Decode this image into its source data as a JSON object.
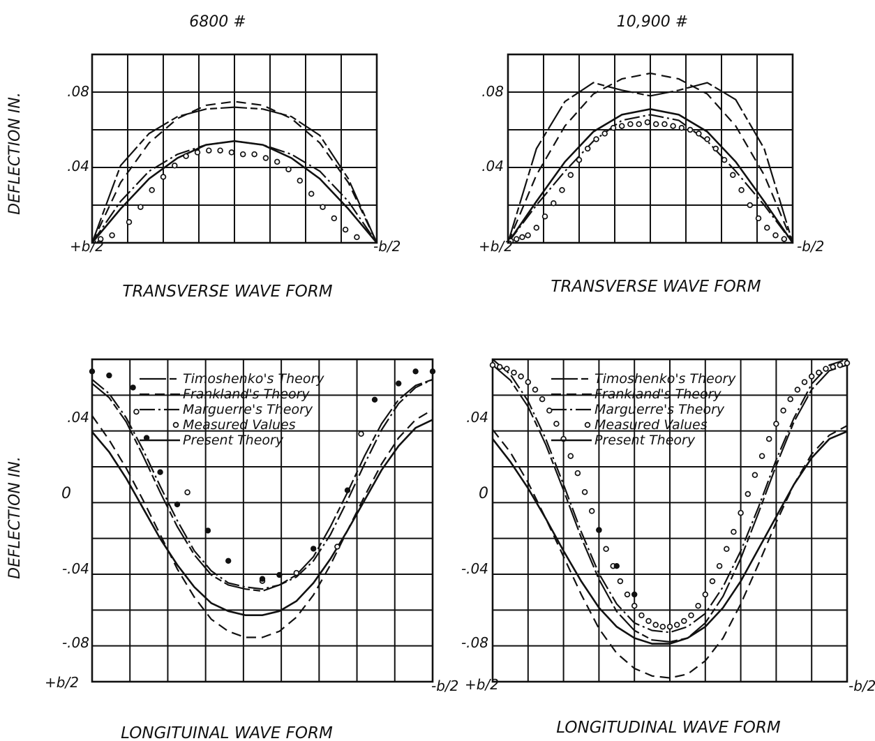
{
  "figure": {
    "ylabel": "DEFLECTION IN.",
    "legend_entries": [
      {
        "label": "Timoshenko's Theory",
        "series": "timoshenko"
      },
      {
        "label": "Frankland's Theory",
        "series": "frankland"
      },
      {
        "label": "Marguerre's Theory",
        "series": "marguerre"
      },
      {
        "label": "Measured Values",
        "series": "measured"
      },
      {
        "label": "Present Theory",
        "series": "present"
      }
    ]
  },
  "chart_data": [
    {
      "type": "line",
      "title": "6800 #",
      "xlabel": "TRANSVERSE WAVE FORM",
      "ylabel": "DEFLECTION IN.",
      "x_tick_labels": [
        "+b/2",
        "-b/2"
      ],
      "y_tick_labels": [
        ".04",
        ".08"
      ],
      "xlim": [
        0,
        1
      ],
      "ylim": [
        0,
        0.1
      ],
      "x": [
        0,
        0.1,
        0.2,
        0.3,
        0.4,
        0.5,
        0.6,
        0.7,
        0.8,
        0.9,
        1.0
      ],
      "series": [
        {
          "key": "timoshenko",
          "values": [
            0,
            0.041,
            0.058,
            0.067,
            0.071,
            0.072,
            0.071,
            0.067,
            0.057,
            0.034,
            0
          ]
        },
        {
          "key": "frankland",
          "values": [
            0,
            0.032,
            0.053,
            0.066,
            0.073,
            0.075,
            0.073,
            0.066,
            0.053,
            0.032,
            0
          ]
        },
        {
          "key": "marguerre",
          "values": [
            0,
            0.022,
            0.038,
            0.047,
            0.052,
            0.054,
            0.052,
            0.047,
            0.038,
            0.022,
            0
          ]
        },
        {
          "key": "present",
          "values": [
            0,
            0.018,
            0.034,
            0.045,
            0.052,
            0.054,
            0.052,
            0.045,
            0.034,
            0.018,
            0
          ]
        },
        {
          "key": "measured",
          "marker": "hollow",
          "x": [
            0.03,
            0.07,
            0.13,
            0.17,
            0.21,
            0.25,
            0.29,
            0.33,
            0.37,
            0.41,
            0.45,
            0.49,
            0.53,
            0.57,
            0.61,
            0.65,
            0.69,
            0.73,
            0.77,
            0.81,
            0.85,
            0.89,
            0.93
          ],
          "values": [
            0.002,
            0.004,
            0.011,
            0.019,
            0.028,
            0.035,
            0.041,
            0.046,
            0.048,
            0.049,
            0.049,
            0.048,
            0.047,
            0.047,
            0.045,
            0.043,
            0.039,
            0.033,
            0.026,
            0.019,
            0.013,
            0.007,
            0.003
          ]
        }
      ]
    },
    {
      "type": "line",
      "title": "10,900 #",
      "xlabel": "TRANSVERSE WAVE FORM",
      "ylabel": "DEFLECTION IN.",
      "x_tick_labels": [
        "+b/2",
        "-b/2"
      ],
      "y_tick_labels": [
        ".04",
        ".08"
      ],
      "xlim": [
        0,
        1
      ],
      "ylim": [
        0,
        0.1
      ],
      "x": [
        0,
        0.1,
        0.2,
        0.3,
        0.4,
        0.5,
        0.6,
        0.7,
        0.8,
        0.9,
        1.0
      ],
      "series": [
        {
          "key": "timoshenko",
          "values": [
            0,
            0.05,
            0.075,
            0.085,
            0.081,
            0.078,
            0.081,
            0.085,
            0.076,
            0.05,
            0
          ]
        },
        {
          "key": "frankland",
          "values": [
            0,
            0.036,
            0.062,
            0.079,
            0.087,
            0.09,
            0.087,
            0.079,
            0.062,
            0.036,
            0
          ]
        },
        {
          "key": "marguerre",
          "values": [
            0,
            0.02,
            0.038,
            0.054,
            0.065,
            0.068,
            0.065,
            0.054,
            0.038,
            0.02,
            0
          ]
        },
        {
          "key": "present",
          "values": [
            0,
            0.022,
            0.043,
            0.059,
            0.068,
            0.071,
            0.068,
            0.059,
            0.043,
            0.022,
            0
          ]
        },
        {
          "key": "measured",
          "marker": "hollow",
          "x": [
            0.01,
            0.03,
            0.05,
            0.07,
            0.1,
            0.13,
            0.16,
            0.19,
            0.22,
            0.25,
            0.28,
            0.31,
            0.34,
            0.37,
            0.4,
            0.43,
            0.46,
            0.49,
            0.52,
            0.55,
            0.58,
            0.61,
            0.64,
            0.67,
            0.7,
            0.73,
            0.76,
            0.79,
            0.82,
            0.85,
            0.88,
            0.91,
            0.94,
            0.97
          ],
          "values": [
            0.001,
            0.002,
            0.003,
            0.004,
            0.008,
            0.014,
            0.021,
            0.028,
            0.036,
            0.044,
            0.05,
            0.055,
            0.058,
            0.061,
            0.062,
            0.063,
            0.063,
            0.064,
            0.063,
            0.063,
            0.062,
            0.061,
            0.06,
            0.058,
            0.055,
            0.05,
            0.044,
            0.036,
            0.028,
            0.02,
            0.013,
            0.008,
            0.004,
            0.002
          ]
        }
      ]
    },
    {
      "type": "line",
      "title": "",
      "xlabel": "LONGITUINAL WAVE FORM",
      "ylabel": "DEFLECTION IN.",
      "x_tick_labels": [
        "+b/2",
        "-b/2"
      ],
      "y_tick_labels": [
        ".04",
        "0",
        "-.04",
        "-.08"
      ],
      "xlim": [
        0,
        1
      ],
      "ylim": [
        -0.1,
        0.06
      ],
      "x": [
        0,
        0.05,
        0.1,
        0.15,
        0.2,
        0.25,
        0.3,
        0.35,
        0.4,
        0.45,
        0.5,
        0.55,
        0.6,
        0.65,
        0.7,
        0.75,
        0.8,
        0.85,
        0.9,
        0.95,
        1.0
      ],
      "series": [
        {
          "key": "timoshenko",
          "values": [
            0.048,
            0.041,
            0.029,
            0.012,
            -0.006,
            -0.023,
            -0.037,
            -0.047,
            -0.052,
            -0.054,
            -0.055,
            -0.052,
            -0.047,
            -0.038,
            -0.023,
            -0.006,
            0.012,
            0.028,
            0.04,
            0.047,
            0.05
          ]
        },
        {
          "key": "frankland",
          "values": [
            0.032,
            0.02,
            0.006,
            -0.01,
            -0.027,
            -0.044,
            -0.058,
            -0.069,
            -0.075,
            -0.078,
            -0.078,
            -0.075,
            -0.068,
            -0.057,
            -0.042,
            -0.025,
            -0.008,
            0.008,
            0.021,
            0.03,
            0.035
          ]
        },
        {
          "key": "marguerre",
          "values": [
            0.05,
            0.043,
            0.031,
            0.015,
            -0.003,
            -0.02,
            -0.035,
            -0.045,
            -0.051,
            -0.053,
            -0.054,
            -0.052,
            -0.048,
            -0.04,
            -0.027,
            -0.01,
            0.008,
            0.025,
            0.038,
            0.046,
            0.05
          ]
        },
        {
          "key": "present",
          "values": [
            0.024,
            0.014,
            0.001,
            -0.014,
            -0.029,
            -0.042,
            -0.053,
            -0.061,
            -0.065,
            -0.067,
            -0.067,
            -0.065,
            -0.06,
            -0.051,
            -0.039,
            -0.025,
            -0.01,
            0.005,
            0.017,
            0.026,
            0.03
          ]
        },
        {
          "key": "measured",
          "marker": "hollow",
          "x": [
            0.13,
            0.28,
            0.5,
            0.6,
            0.72,
            0.79
          ],
          "values": [
            0.034,
            -0.006,
            -0.05,
            -0.046,
            -0.033,
            0.023
          ]
        },
        {
          "key": "measured",
          "marker": "filled",
          "x": [
            0.0,
            0.05,
            0.12,
            0.16,
            0.2,
            0.25,
            0.34,
            0.4,
            0.5,
            0.55,
            0.65,
            0.75,
            0.83,
            0.9,
            0.95,
            1.0
          ],
          "values": [
            0.054,
            0.052,
            0.046,
            0.021,
            0.004,
            -0.012,
            -0.025,
            -0.04,
            -0.049,
            -0.047,
            -0.034,
            -0.005,
            0.04,
            0.048,
            0.054,
            0.054
          ]
        }
      ]
    },
    {
      "type": "line",
      "title": "",
      "xlabel": "LONGITUDINAL WAVE FORM",
      "ylabel": "DEFLECTION IN.",
      "x_tick_labels": [
        "+b/2",
        "-b/2"
      ],
      "y_tick_labels": [
        ".04",
        "0",
        "-.04",
        "-.08"
      ],
      "xlim": [
        0,
        1
      ],
      "ylim": [
        -0.1,
        0.07
      ],
      "x": [
        0,
        0.05,
        0.1,
        0.15,
        0.2,
        0.25,
        0.3,
        0.35,
        0.4,
        0.45,
        0.5,
        0.55,
        0.6,
        0.65,
        0.7,
        0.75,
        0.8,
        0.85,
        0.9,
        0.95,
        1.0
      ],
      "series": [
        {
          "key": "timoshenko",
          "values": [
            0.067,
            0.059,
            0.045,
            0.025,
            0.001,
            -0.024,
            -0.046,
            -0.063,
            -0.073,
            -0.078,
            -0.079,
            -0.077,
            -0.069,
            -0.055,
            -0.035,
            -0.011,
            0.014,
            0.037,
            0.054,
            0.064,
            0.067
          ]
        },
        {
          "key": "frankland",
          "values": [
            0.033,
            0.021,
            0.005,
            -0.014,
            -0.034,
            -0.054,
            -0.072,
            -0.085,
            -0.093,
            -0.097,
            -0.098,
            -0.096,
            -0.089,
            -0.077,
            -0.059,
            -0.038,
            -0.016,
            0.004,
            0.02,
            0.03,
            0.035
          ]
        },
        {
          "key": "marguerre",
          "values": [
            0.07,
            0.062,
            0.048,
            0.028,
            0.004,
            -0.021,
            -0.043,
            -0.059,
            -0.069,
            -0.073,
            -0.074,
            -0.071,
            -0.064,
            -0.05,
            -0.031,
            -0.008,
            0.017,
            0.039,
            0.057,
            0.067,
            0.07
          ]
        },
        {
          "key": "present",
          "values": [
            0.028,
            0.016,
            0.002,
            -0.014,
            -0.031,
            -0.047,
            -0.061,
            -0.071,
            -0.077,
            -0.08,
            -0.08,
            -0.077,
            -0.071,
            -0.061,
            -0.047,
            -0.03,
            -0.013,
            0.004,
            0.018,
            0.028,
            0.032
          ]
        },
        {
          "key": "measured",
          "marker": "hollow",
          "x": [
            0.0,
            0.02,
            0.04,
            0.06,
            0.08,
            0.1,
            0.12,
            0.14,
            0.16,
            0.18,
            0.2,
            0.22,
            0.24,
            0.26,
            0.28,
            0.3,
            0.32,
            0.34,
            0.36,
            0.38,
            0.4,
            0.42,
            0.44,
            0.46,
            0.48,
            0.5,
            0.52,
            0.54,
            0.56,
            0.58,
            0.6,
            0.62,
            0.64,
            0.66,
            0.68,
            0.7,
            0.72,
            0.74,
            0.76,
            0.78,
            0.8,
            0.82,
            0.84,
            0.86,
            0.88,
            0.9,
            0.92,
            0.94,
            0.96,
            0.98,
            1.0
          ],
          "values": [
            0.067,
            0.066,
            0.065,
            0.063,
            0.061,
            0.058,
            0.054,
            0.049,
            0.043,
            0.036,
            0.028,
            0.019,
            0.01,
            0.0,
            -0.01,
            -0.02,
            -0.03,
            -0.039,
            -0.047,
            -0.054,
            -0.06,
            -0.065,
            -0.068,
            -0.07,
            -0.071,
            -0.071,
            -0.07,
            -0.068,
            -0.065,
            -0.06,
            -0.054,
            -0.047,
            -0.039,
            -0.03,
            -0.021,
            -0.011,
            -0.001,
            0.009,
            0.019,
            0.028,
            0.036,
            0.043,
            0.049,
            0.054,
            0.058,
            0.061,
            0.063,
            0.065,
            0.066,
            0.067,
            0.068
          ]
        },
        {
          "key": "measured",
          "marker": "filled",
          "x": [
            0.3,
            0.35,
            0.4
          ],
          "values": [
            -0.02,
            -0.039,
            -0.054
          ]
        }
      ]
    }
  ]
}
